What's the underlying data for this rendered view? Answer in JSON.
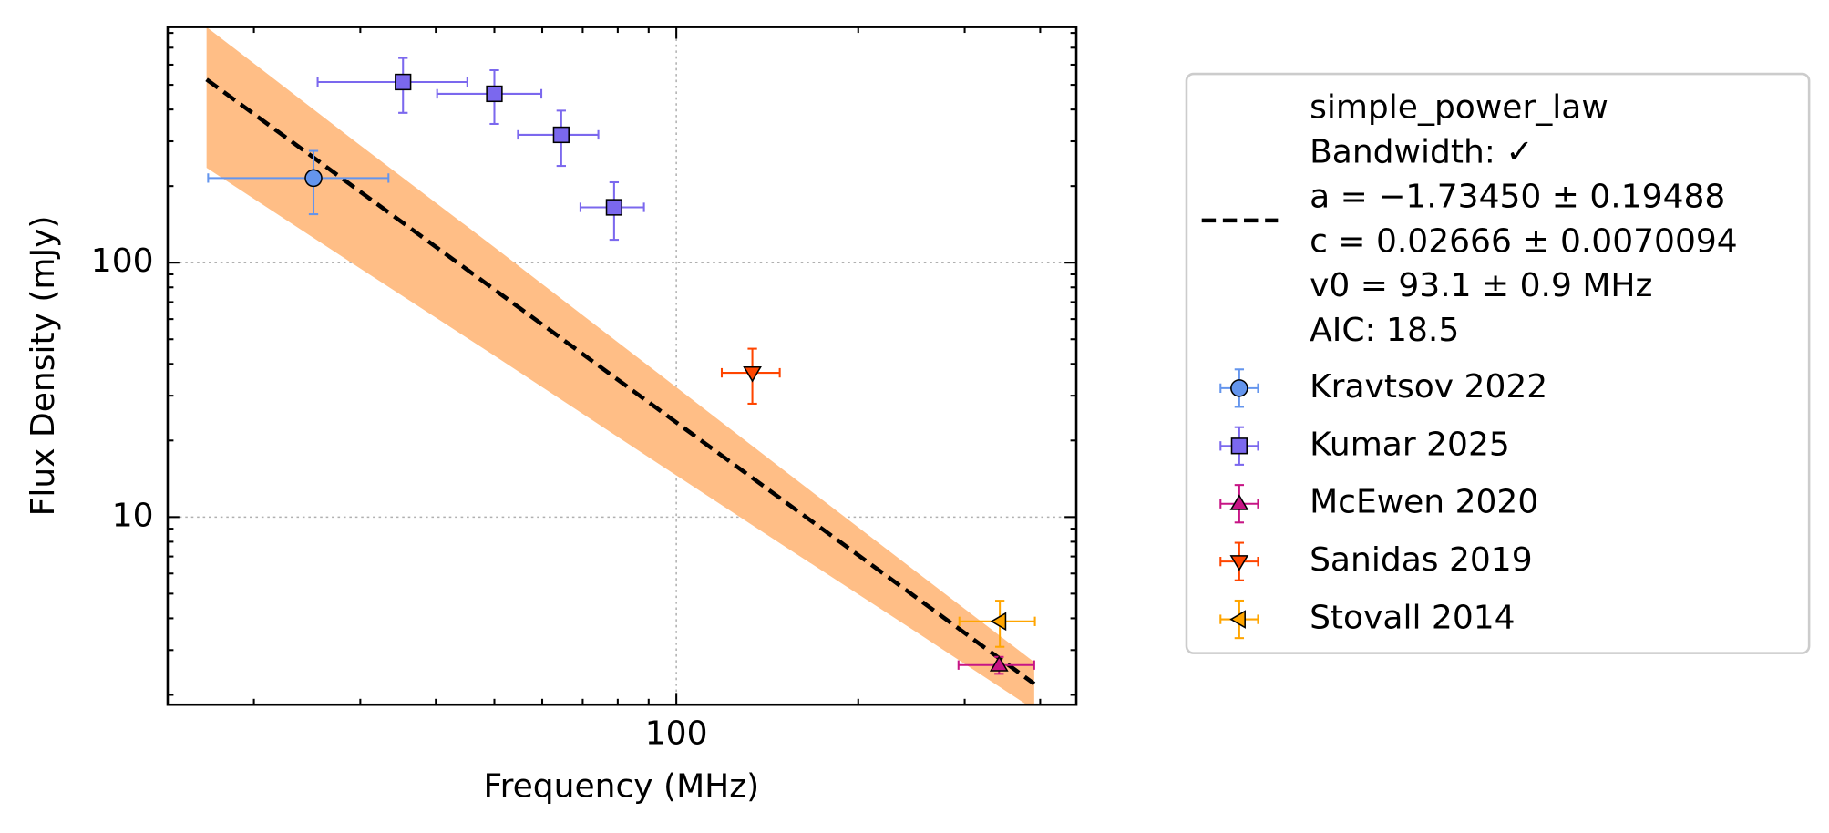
{
  "chart_data": {
    "type": "scatter",
    "xlabel": "Frequency (MHz)",
    "ylabel": "Flux Density (mJy)",
    "xscale": "log",
    "yscale": "log",
    "xlim": [
      14.4,
      459
    ],
    "ylim": [
      1.83,
      844
    ],
    "xticks": [
      100
    ],
    "yticks": [
      10,
      100
    ],
    "xminor": [
      20,
      30,
      40,
      50,
      60,
      70,
      80,
      90,
      200,
      300,
      400
    ],
    "yminor": [
      2,
      3,
      4,
      5,
      6,
      7,
      8,
      9,
      20,
      30,
      40,
      50,
      60,
      70,
      80,
      90,
      200,
      300,
      400,
      500,
      600,
      700,
      800
    ],
    "grid": true,
    "legend": "right",
    "fit": {
      "label_lines": [
        "simple_power_law",
        "Bandwidth: ✓",
        "a = −1.73450 ± 0.19488",
        "c = 0.02666 ± 0.0070094",
        "v0 = 93.1 ± 0.9 MHz",
        "AIC: 18.5"
      ],
      "color": "#000000",
      "band_color": "#FFBE86",
      "x": [
        16.7,
        30,
        50,
        93.1,
        150,
        250,
        391
      ],
      "y": [
        525,
        190,
        78.4,
        26.66,
        11.66,
        4.81,
        2.21
      ],
      "upper": [
        844,
        289,
        115,
        36.9,
        15.4,
        6.07,
        2.69
      ],
      "lower": [
        236,
        94.8,
        43.1,
        16.3,
        7.76,
        3.52,
        1.75
      ]
    },
    "series": [
      {
        "name": "Kravtsov 2022",
        "color": "#6495ED",
        "marker": "circle",
        "x": [
          25.1
        ],
        "values": [
          215
        ],
        "xerr": [
          8.3
        ],
        "yerr": [
          60
        ]
      },
      {
        "name": "Kumar 2025",
        "color": "#7B68EE",
        "marker": "square",
        "x": [
          35.3,
          50,
          64.5,
          78.9
        ],
        "values": [
          513,
          461,
          318,
          165
        ],
        "xerr": [
          9.8,
          9.8,
          9.8,
          9.5
        ],
        "yerr": [
          125,
          110,
          78,
          42
        ]
      },
      {
        "name": "McEwen 2020",
        "color": "#C71585",
        "marker": "triangle-up",
        "x": [
          342
        ],
        "values": [
          2.62
        ],
        "xerr": [
          49
        ],
        "yerr": [
          0.2
        ]
      },
      {
        "name": "Sanidas 2019",
        "color": "#FF4500",
        "marker": "triangle-down",
        "x": [
          133.6
        ],
        "values": [
          36.9
        ],
        "xerr": [
          14.7
        ],
        "yerr": [
          9
        ]
      },
      {
        "name": "Stovall 2014",
        "color": "#FFA500",
        "marker": "triangle-left",
        "x": [
          343
        ],
        "values": [
          3.89
        ],
        "xerr": [
          49
        ],
        "yerr": [
          0.8
        ]
      }
    ]
  }
}
